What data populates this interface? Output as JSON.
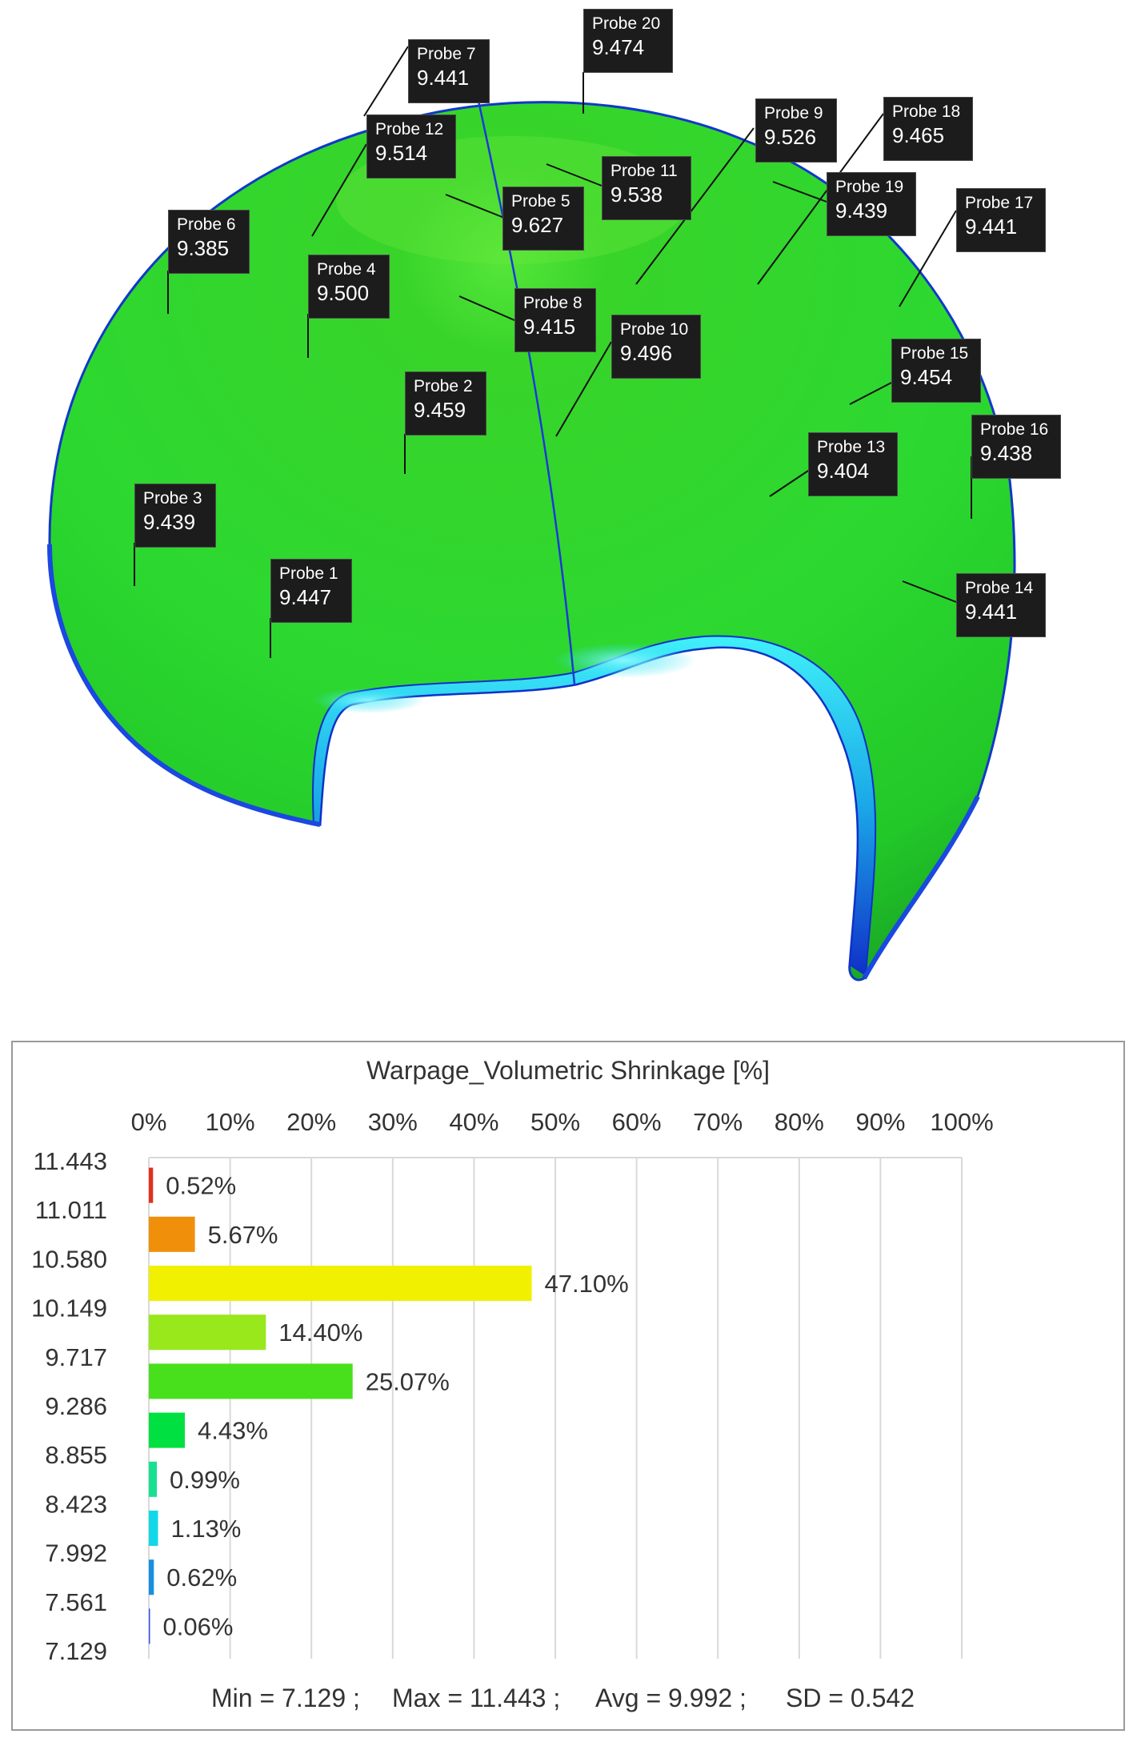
{
  "probes": [
    {
      "name": "Probe 1",
      "value": "9.447"
    },
    {
      "name": "Probe 2",
      "value": "9.459"
    },
    {
      "name": "Probe 3",
      "value": "9.439"
    },
    {
      "name": "Probe 4",
      "value": "9.500"
    },
    {
      "name": "Probe 5",
      "value": "9.627"
    },
    {
      "name": "Probe 6",
      "value": "9.385"
    },
    {
      "name": "Probe 7",
      "value": "9.441"
    },
    {
      "name": "Probe 8",
      "value": "9.415"
    },
    {
      "name": "Probe 9",
      "value": "9.526"
    },
    {
      "name": "Probe 10",
      "value": "9.496"
    },
    {
      "name": "Probe 11",
      "value": "9.538"
    },
    {
      "name": "Probe 12",
      "value": "9.514"
    },
    {
      "name": "Probe 13",
      "value": "9.404"
    },
    {
      "name": "Probe 14",
      "value": "9.441"
    },
    {
      "name": "Probe 15",
      "value": "9.454"
    },
    {
      "name": "Probe 16",
      "value": "9.438"
    },
    {
      "name": "Probe 17",
      "value": "9.441"
    },
    {
      "name": "Probe 18",
      "value": "9.465"
    },
    {
      "name": "Probe 19",
      "value": "9.439"
    },
    {
      "name": "Probe 20",
      "value": "9.474"
    }
  ],
  "colors": {
    "part_green": "#2cd62c",
    "part_edge_blue": "#1030d0",
    "part_cyan": "#30e8f8"
  },
  "chart_data": {
    "type": "bar",
    "orientation": "horizontal",
    "title": "Warpage_Volumetric Shrinkage [%]",
    "x_axis_ticks": [
      "0%",
      "10%",
      "20%",
      "30%",
      "40%",
      "50%",
      "60%",
      "70%",
      "80%",
      "90%",
      "100%"
    ],
    "xlim": [
      0,
      100
    ],
    "grid": true,
    "bin_edges": [
      "11.443",
      "11.011",
      "10.580",
      "10.149",
      "9.717",
      "9.286",
      "8.855",
      "8.423",
      "7.992",
      "7.561",
      "7.129"
    ],
    "values": [
      0.52,
      5.67,
      47.1,
      14.4,
      25.07,
      4.43,
      0.99,
      1.13,
      0.62,
      0.06
    ],
    "value_labels": [
      "0.52%",
      "5.67%",
      "47.10%",
      "14.40%",
      "25.07%",
      "4.43%",
      "0.99%",
      "1.13%",
      "0.62%",
      "0.06%"
    ],
    "bar_colors": [
      "#e0301e",
      "#f0900a",
      "#f0f000",
      "#98e81c",
      "#48e01c",
      "#00e040",
      "#18e090",
      "#10d8e8",
      "#1890e0",
      "#3050f0"
    ],
    "stats": {
      "min_label": "Min = 7.129 ;",
      "max_label": "Max = 11.443 ;",
      "avg_label": "Avg = 9.992 ;",
      "sd_label": "SD = 0.542"
    }
  }
}
